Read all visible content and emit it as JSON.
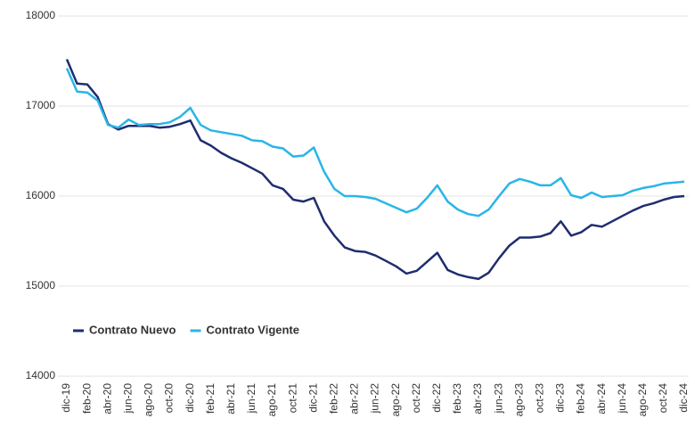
{
  "chart_data": {
    "type": "line",
    "categories": [
      "dic-19",
      null,
      "feb-20",
      null,
      "abr-20",
      null,
      "jun-20",
      null,
      "ago-20",
      null,
      "oct-20",
      null,
      "dic-20",
      null,
      "feb-21",
      null,
      "abr-21",
      null,
      "jun-21",
      null,
      "ago-21",
      null,
      "oct-21",
      null,
      "dic-21",
      null,
      "feb-22",
      null,
      "abr-22",
      null,
      "jun-22",
      null,
      "ago-22",
      null,
      "oct-22",
      null,
      "dic-22",
      null,
      "feb-23",
      null,
      "abr-23",
      null,
      "jun-23",
      null,
      "ago-23",
      null,
      "oct-23",
      null,
      "dic-23",
      null,
      "feb-24",
      null,
      "abr-24",
      null,
      "jun-24",
      null,
      "ago-24",
      null,
      "oct-24",
      null,
      "dic-24"
    ],
    "series": [
      {
        "name": "Contrato Nuevo",
        "color": "#1f2d6e",
        "values": [
          17520,
          17250,
          17240,
          17100,
          16800,
          16740,
          16780,
          16780,
          16780,
          16760,
          16770,
          16800,
          16840,
          16620,
          16560,
          16480,
          16420,
          16370,
          16310,
          16250,
          16120,
          16080,
          15960,
          15940,
          15980,
          15720,
          15560,
          15430,
          15390,
          15380,
          15340,
          15280,
          15220,
          15140,
          15170,
          15270,
          15370,
          15180,
          15130,
          15100,
          15080,
          15150,
          15310,
          15450,
          15540,
          15540,
          15550,
          15590,
          15720,
          15560,
          15600,
          15680,
          15660,
          15720,
          15780,
          15840,
          15890,
          15920,
          15960,
          15990,
          16000
        ]
      },
      {
        "name": "Contrato Vigente",
        "color": "#29b5e8",
        "values": [
          17420,
          17160,
          17150,
          17060,
          16790,
          16760,
          16850,
          16790,
          16800,
          16800,
          16820,
          16880,
          16980,
          16790,
          16730,
          16710,
          16690,
          16670,
          16620,
          16610,
          16550,
          16530,
          16440,
          16450,
          16540,
          16270,
          16080,
          16000,
          16000,
          15990,
          15970,
          15920,
          15870,
          15820,
          15860,
          15980,
          16120,
          15940,
          15850,
          15800,
          15780,
          15850,
          16000,
          16140,
          16190,
          16160,
          16120,
          16120,
          16200,
          16010,
          15980,
          16040,
          15990,
          16000,
          16010,
          16060,
          16090,
          16110,
          16140,
          16150,
          16160
        ]
      }
    ],
    "ylim": [
      14000,
      18000
    ],
    "yticks": [
      14000,
      15000,
      16000,
      17000,
      18000
    ],
    "grid": true,
    "legend": "lower left"
  }
}
